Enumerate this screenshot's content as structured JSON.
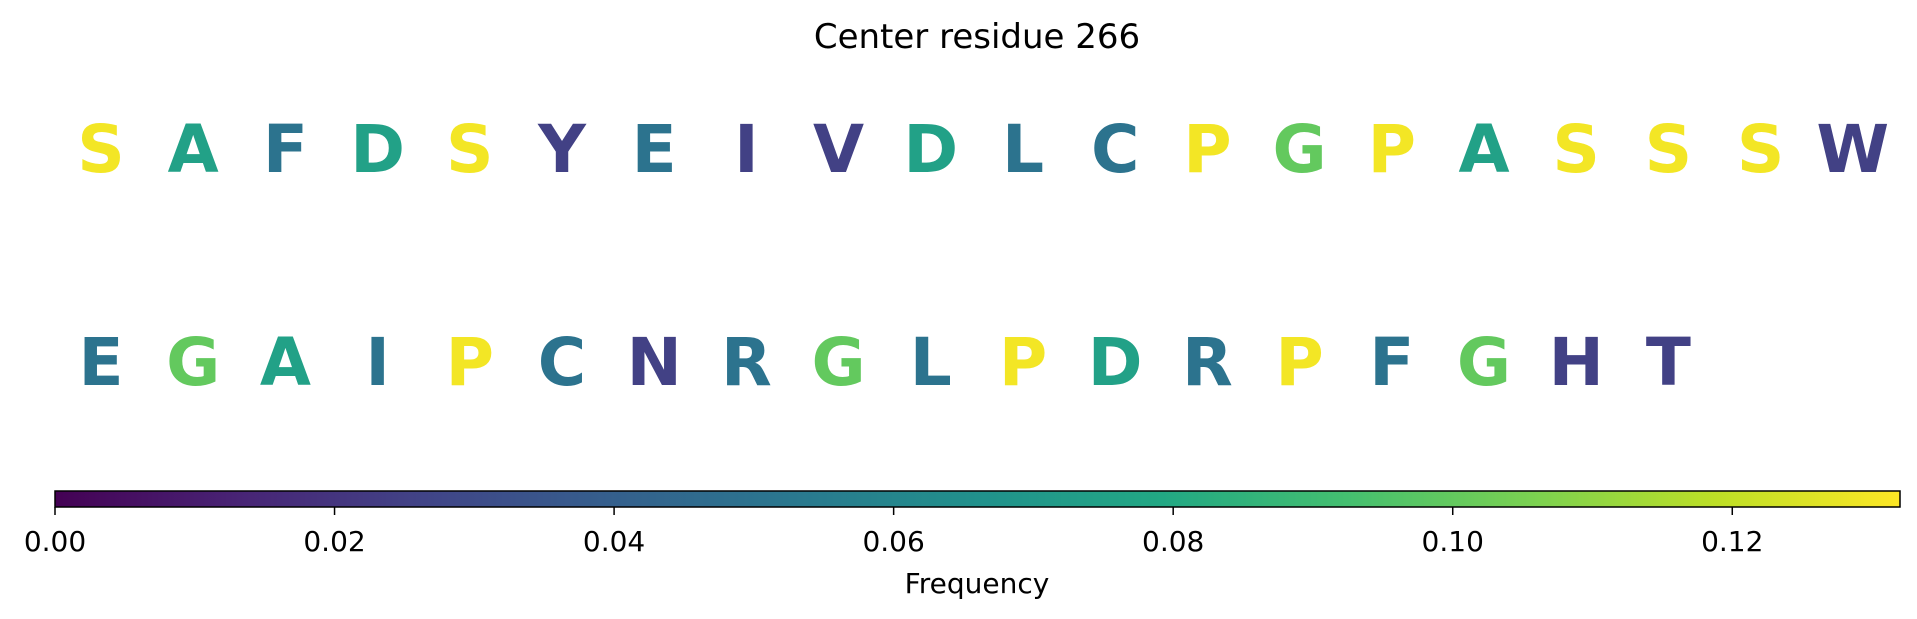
{
  "chart_data": {
    "type": "heatmap",
    "title": "Center residue 266",
    "rows": [
      [
        {
          "residue": "S",
          "frequency": 0.13
        },
        {
          "residue": "A",
          "frequency": 0.075
        },
        {
          "residue": "F",
          "frequency": 0.05
        },
        {
          "residue": "D",
          "frequency": 0.075
        },
        {
          "residue": "S",
          "frequency": 0.13
        },
        {
          "residue": "Y",
          "frequency": 0.025
        },
        {
          "residue": "E",
          "frequency": 0.05
        },
        {
          "residue": "I",
          "frequency": 0.025
        },
        {
          "residue": "V",
          "frequency": 0.025
        },
        {
          "residue": "D",
          "frequency": 0.075
        },
        {
          "residue": "L",
          "frequency": 0.05
        },
        {
          "residue": "C",
          "frequency": 0.05
        },
        {
          "residue": "P",
          "frequency": 0.13
        },
        {
          "residue": "G",
          "frequency": 0.1
        },
        {
          "residue": "P",
          "frequency": 0.13
        },
        {
          "residue": "A",
          "frequency": 0.075
        },
        {
          "residue": "S",
          "frequency": 0.13
        },
        {
          "residue": "S",
          "frequency": 0.13
        },
        {
          "residue": "S",
          "frequency": 0.13
        },
        {
          "residue": "W",
          "frequency": 0.025
        }
      ],
      [
        {
          "residue": "E",
          "frequency": 0.05
        },
        {
          "residue": "G",
          "frequency": 0.1
        },
        {
          "residue": "A",
          "frequency": 0.075
        },
        {
          "residue": "I",
          "frequency": 0.05
        },
        {
          "residue": "P",
          "frequency": 0.13
        },
        {
          "residue": "C",
          "frequency": 0.05
        },
        {
          "residue": "N",
          "frequency": 0.025
        },
        {
          "residue": "R",
          "frequency": 0.05
        },
        {
          "residue": "G",
          "frequency": 0.1
        },
        {
          "residue": "L",
          "frequency": 0.05
        },
        {
          "residue": "P",
          "frequency": 0.13
        },
        {
          "residue": "D",
          "frequency": 0.075
        },
        {
          "residue": "R",
          "frequency": 0.05
        },
        {
          "residue": "P",
          "frequency": 0.13
        },
        {
          "residue": "F",
          "frequency": 0.05
        },
        {
          "residue": "G",
          "frequency": 0.1
        },
        {
          "residue": "H",
          "frequency": 0.025
        },
        {
          "residue": "T",
          "frequency": 0.025
        }
      ]
    ],
    "colorbar": {
      "label": "Frequency",
      "colormap": "viridis",
      "range": [
        0,
        0.132
      ],
      "ticks": [
        0.0,
        0.02,
        0.04,
        0.06,
        0.08,
        0.1,
        0.12
      ],
      "tick_labels": [
        "0.00",
        "0.02",
        "0.04",
        "0.06",
        "0.08",
        "0.10",
        "0.12"
      ]
    }
  }
}
